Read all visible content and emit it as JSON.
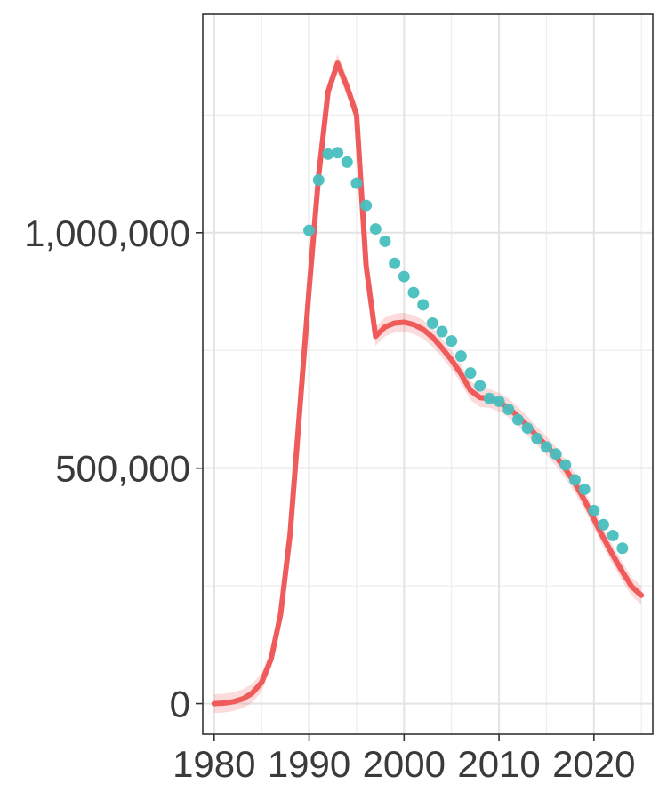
{
  "chart_data": {
    "type": "line",
    "title": "",
    "xlabel": "",
    "ylabel": "",
    "xlim": [
      1978.8,
      2026.2
    ],
    "ylim": [
      -65000,
      1464000
    ],
    "grid": true,
    "x_ticks": [
      1980,
      1990,
      2000,
      2010,
      2020
    ],
    "x_tick_labels": [
      "1980",
      "1990",
      "2000",
      "2010",
      "2020"
    ],
    "y_ticks": [
      0,
      500000,
      1000000
    ],
    "y_tick_labels": [
      "0",
      "500,000",
      "1,000,000"
    ],
    "series": [
      {
        "type": "line",
        "color": "#ef5b5b",
        "x": [
          1980,
          1981,
          1982,
          1983,
          1984,
          1985,
          1986,
          1987,
          1988,
          1989,
          1990,
          1991,
          1992,
          1993,
          1994,
          1995,
          1996,
          1997,
          1998,
          1999,
          2000,
          2001,
          2002,
          2003,
          2004,
          2005,
          2006,
          2007,
          2008,
          2009,
          2010,
          2011,
          2012,
          2013,
          2014,
          2015,
          2016,
          2017,
          2018,
          2019,
          2020,
          2021,
          2022,
          2023,
          2024,
          2025
        ],
        "y": [
          0,
          1000,
          4000,
          10000,
          22000,
          45000,
          95000,
          190000,
          360000,
          620000,
          880000,
          1120000,
          1300000,
          1360000,
          1310000,
          1250000,
          930000,
          780000,
          800000,
          808000,
          810000,
          805000,
          795000,
          778000,
          755000,
          730000,
          700000,
          665000,
          650000,
          648000,
          640000,
          628000,
          610000,
          590000,
          568000,
          548000,
          525000,
          498000,
          468000,
          432000,
          392000,
          352000,
          315000,
          280000,
          248000,
          230000
        ],
        "band": 20000
      },
      {
        "type": "scatter",
        "color": "#48bfbf",
        "x": [
          1990,
          1991,
          1992,
          1993,
          1994,
          1995,
          1996,
          1997,
          1998,
          1999,
          2000,
          2001,
          2002,
          2003,
          2004,
          2005,
          2006,
          2007,
          2008,
          2009,
          2010,
          2011,
          2012,
          2013,
          2014,
          2015,
          2016,
          2017,
          2018,
          2019,
          2020,
          2021,
          2022,
          2023
        ],
        "y": [
          1005000,
          1112000,
          1167000,
          1170000,
          1150000,
          1105000,
          1058000,
          1008000,
          982000,
          935000,
          907000,
          873000,
          847000,
          808000,
          790000,
          770000,
          738000,
          702000,
          675000,
          648000,
          642000,
          625000,
          603000,
          585000,
          563000,
          545000,
          530000,
          507000,
          475000,
          455000,
          410000,
          380000,
          357000,
          330000
        ]
      }
    ]
  }
}
